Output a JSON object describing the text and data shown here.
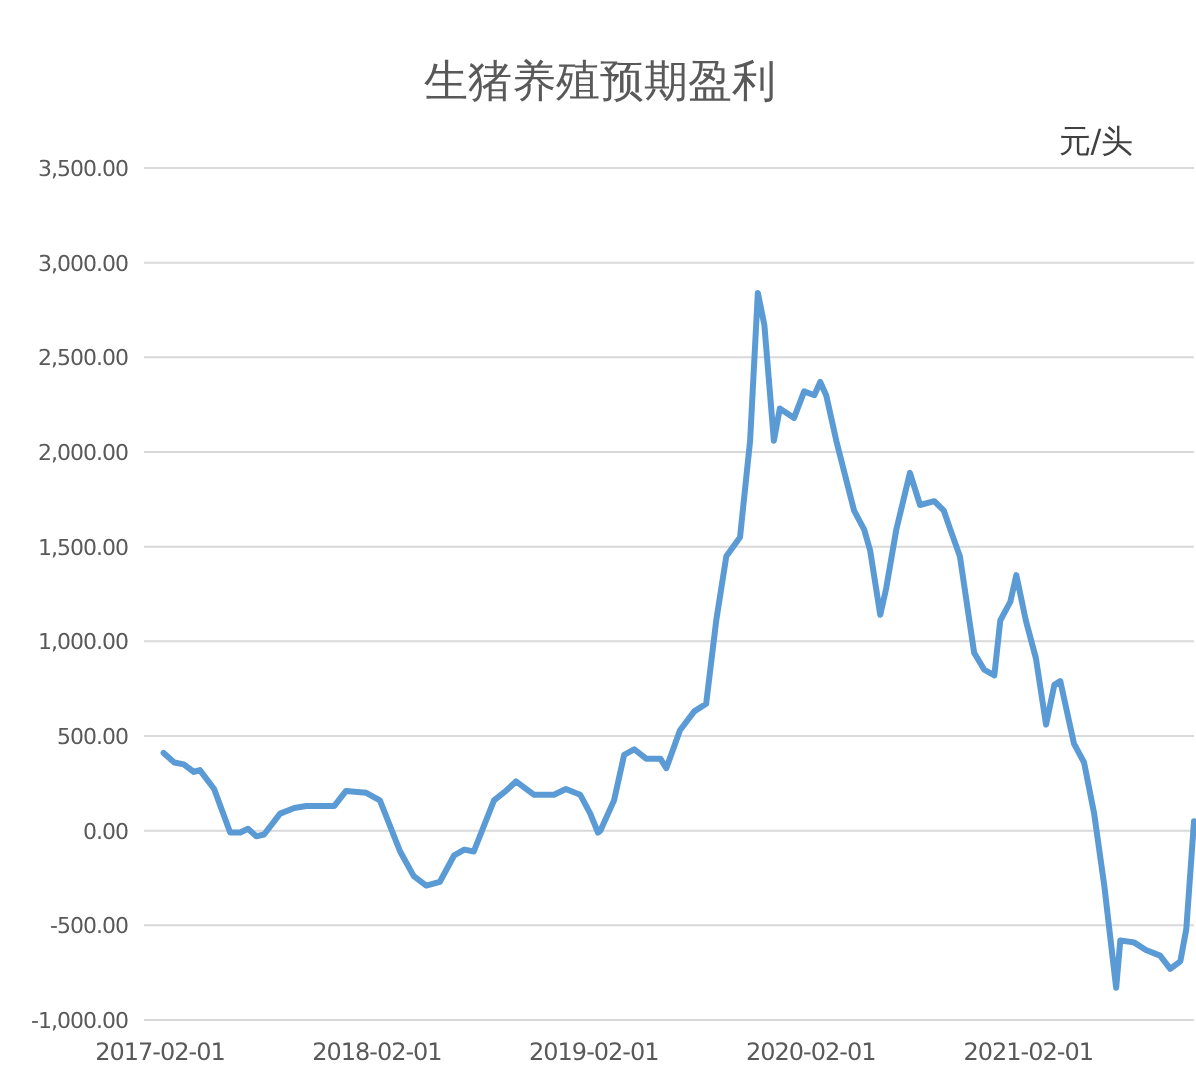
{
  "chart_data": {
    "type": "line",
    "title": "生猪养殖预期盈利",
    "ylabel": "元/头",
    "grid": "y",
    "line_style": "solid",
    "marker": "none",
    "xlim": [
      "2017-01-05",
      "2021-11-07"
    ],
    "xticks": [
      "2017-02-01",
      "2018-02-01",
      "2019-02-01",
      "2020-02-01",
      "2021-02-01"
    ],
    "ylim": [
      -1000,
      3500
    ],
    "yticks": [
      {
        "value": -1000,
        "label": "-1,000.00"
      },
      {
        "value": -500,
        "label": "-500.00"
      },
      {
        "value": 0,
        "label": "0.00"
      },
      {
        "value": 500,
        "label": "500.00"
      },
      {
        "value": 1000,
        "label": "1,000.00"
      },
      {
        "value": 1500,
        "label": "1,500.00"
      },
      {
        "value": 2000,
        "label": "2,000.00"
      },
      {
        "value": 2500,
        "label": "2,500.00"
      },
      {
        "value": 3000,
        "label": "3,000.00"
      },
      {
        "value": 3500,
        "label": "3,500.00"
      }
    ],
    "x": [
      "2017-02-07",
      "2017-02-25",
      "2017-03-13",
      "2017-03-30",
      "2017-04-09",
      "2017-05-03",
      "2017-05-30",
      "2017-06-16",
      "2017-06-29",
      "2017-07-13",
      "2017-07-26",
      "2017-08-22",
      "2017-09-15",
      "2017-10-05",
      "2017-11-21",
      "2017-12-11",
      "2018-01-14",
      "2018-02-06",
      "2018-03-12",
      "2018-04-04",
      "2018-04-25",
      "2018-05-18",
      "2018-06-11",
      "2018-06-28",
      "2018-07-14",
      "2018-08-17",
      "2018-09-06",
      "2018-09-23",
      "2018-10-23",
      "2018-11-26",
      "2018-12-16",
      "2019-01-09",
      "2019-01-26",
      "2019-02-08",
      "2019-02-12",
      "2019-03-07",
      "2019-03-24",
      "2019-04-10",
      "2019-04-30",
      "2019-05-24",
      "2019-06-03",
      "2019-06-26",
      "2019-07-20",
      "2019-08-09",
      "2019-08-26",
      "2019-09-12",
      "2019-10-05",
      "2019-10-22",
      "2019-11-04",
      "2019-11-15",
      "2019-12-01",
      "2019-12-11",
      "2020-01-04",
      "2020-01-21",
      "2020-02-07",
      "2020-02-17",
      "2020-02-27",
      "2020-03-15",
      "2020-04-14",
      "2020-05-01",
      "2020-05-11",
      "2020-05-28",
      "2020-06-07",
      "2020-06-24",
      "2020-07-17",
      "2020-08-03",
      "2020-08-27",
      "2020-09-12",
      "2020-09-23",
      "2020-10-09",
      "2020-11-02",
      "2020-11-19",
      "2020-12-06",
      "2020-12-16",
      "2021-01-02",
      "2021-01-12",
      "2021-01-28",
      "2021-02-14",
      "2021-03-03",
      "2021-03-17",
      "2021-03-27",
      "2021-04-19",
      "2021-05-06",
      "2021-05-23",
      "2021-06-09",
      "2021-06-29",
      "2021-07-06",
      "2021-07-29",
      "2021-08-18",
      "2021-09-11",
      "2021-09-28",
      "2021-10-15",
      "2021-10-25",
      "2021-11-07"
    ],
    "series": [
      {
        "color": "#5b9bd5",
        "values": [
          410,
          360,
          350,
          310,
          320,
          220,
          -10,
          -10,
          10,
          -30,
          -20,
          90,
          120,
          130,
          130,
          210,
          200,
          160,
          -110,
          -240,
          -290,
          -270,
          -130,
          -100,
          -110,
          160,
          210,
          260,
          190,
          190,
          220,
          190,
          90,
          -10,
          0,
          160,
          400,
          430,
          380,
          380,
          330,
          530,
          630,
          670,
          1110,
          1450,
          1550,
          2060,
          2840,
          2670,
          2060,
          2230,
          2180,
          2320,
          2300,
          2370,
          2300,
          2060,
          1690,
          1590,
          1480,
          1140,
          1280,
          1590,
          1890,
          1720,
          1740,
          1690,
          1590,
          1450,
          940,
          850,
          820,
          1110,
          1210,
          1350,
          1110,
          910,
          560,
          770,
          790,
          460,
          360,
          90,
          -290,
          -830,
          -580,
          -590,
          -630,
          -660,
          -730,
          -690,
          -520,
          50
        ]
      }
    ]
  }
}
